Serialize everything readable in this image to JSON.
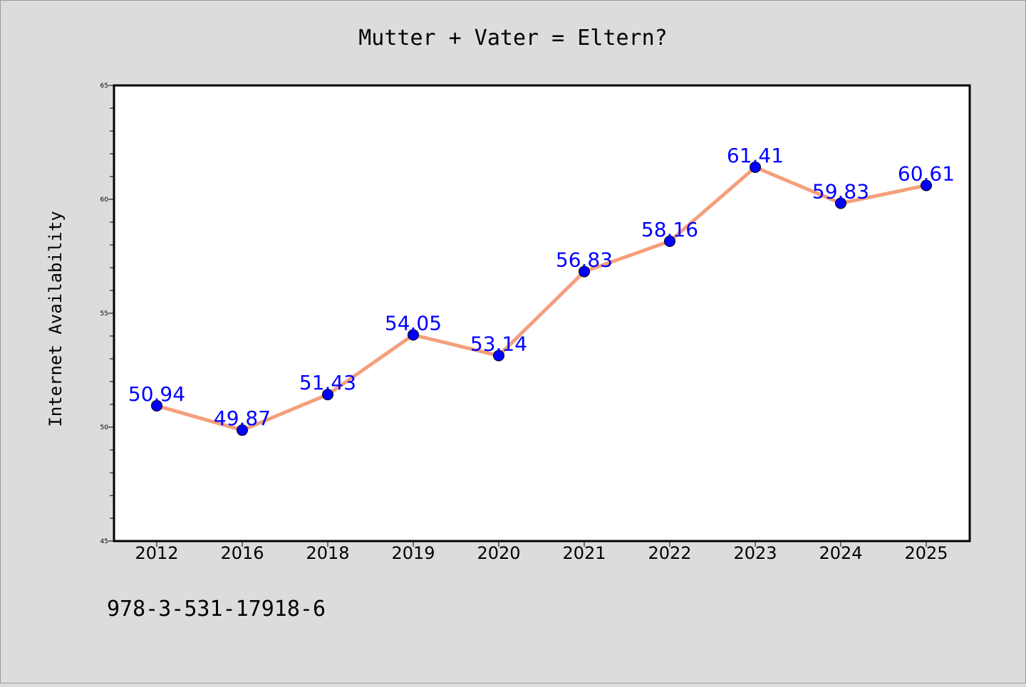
{
  "chart_data": {
    "type": "line",
    "title": "Mutter + Vater = Eltern?",
    "xlabel": "",
    "ylabel": "Internet Availability",
    "categories": [
      "2012",
      "2016",
      "2018",
      "2019",
      "2020",
      "2021",
      "2022",
      "2023",
      "2024",
      "2025"
    ],
    "series": [
      {
        "values": [
          50.94,
          49.87,
          51.43,
          54.05,
          53.14,
          56.83,
          58.16,
          61.41,
          59.83,
          60.61
        ],
        "labels": [
          "50.94",
          "49.87",
          "51.43",
          "54.05",
          "53.14",
          "56.83",
          "58.16",
          "61.41",
          "59.83",
          "60.61"
        ],
        "line_color": "#f4a07c",
        "marker_color": "#0000ff",
        "label_color": "#0000ff"
      }
    ],
    "ylim": [
      45,
      65
    ],
    "y_ticks": [
      45,
      50,
      55,
      60,
      65
    ],
    "y_tick_labels": [
      "45",
      "50",
      "55",
      "60",
      "65"
    ],
    "grid": false,
    "legend": "none"
  },
  "footer_text": "978-3-531-17918-6",
  "colors": {
    "background": "#dcdcdc",
    "plot_background": "#ffffff",
    "axes": "#000000"
  }
}
